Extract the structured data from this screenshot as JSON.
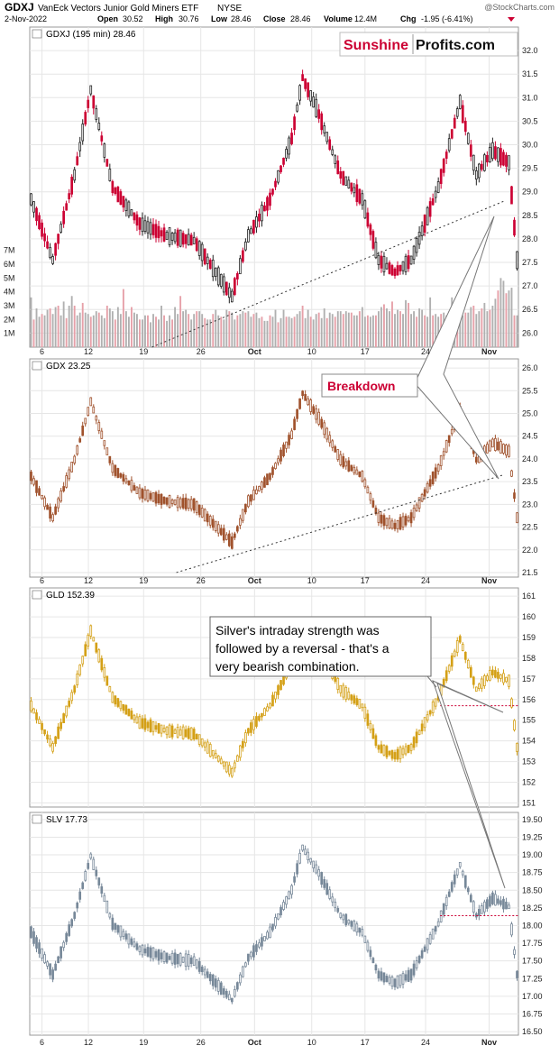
{
  "header": {
    "ticker": "GDXJ",
    "name": "VanEck Vectors Junior Gold Miners ETF",
    "exchange": "NYSE",
    "watermark": "@StockCharts.com",
    "date": "2-Nov-2022",
    "open_label": "Open",
    "open": "30.52",
    "high_label": "High",
    "high": "30.76",
    "low_label": "Low",
    "low": "28.46",
    "close_label": "Close",
    "close": "28.46",
    "volume_label": "Volume",
    "volume": "12.4M",
    "chg_label": "Chg",
    "chg": "-1.95 (-6.41%)"
  },
  "logo": {
    "part1": "Sunshine",
    "part2": "Profits.com"
  },
  "x_labels": [
    "6",
    "12",
    "19",
    "26",
    "Oct",
    "10",
    "17",
    "24",
    "Nov"
  ],
  "annotations": {
    "breakdown": "Breakdown",
    "silver_note_lines": [
      "Silver's intraday strength was",
      "followed by a reversal - that's a",
      "very bearish combination."
    ]
  },
  "colors": {
    "gdxj_up": "#222222",
    "gdxj_down": "#cc0033",
    "gdx": "#a0522d",
    "gld": "#d4a017",
    "slv": "#778899",
    "vol_up": "#b0b0b0",
    "vol_down": "#e6a0a8",
    "logo_red": "#cc0033",
    "grid": "#e6e6e6"
  },
  "chart_data": [
    {
      "type": "candlestick",
      "title": "GDXJ (195 min) 28.46",
      "ylim": [
        25.7,
        32.5
      ],
      "y_ticks": [
        "32.0",
        "31.5",
        "31.0",
        "30.5",
        "30.0",
        "29.5",
        "29.0",
        "28.5",
        "28.0",
        "27.5",
        "27.0",
        "26.5",
        "26.0"
      ],
      "volume_ticks": [
        "7M",
        "6M",
        "5M",
        "4M",
        "3M",
        "2M",
        "1M"
      ],
      "volume_max": 7.5,
      "volume": [
        3.6,
        2.6,
        2.0,
        2.4,
        2.8,
        3.0,
        2.2,
        2.1,
        2.4,
        2.6,
        2.3,
        2.0,
        2.7,
        2.6,
        2.8,
        3.2,
        2.4,
        2.1,
        2.9,
        2.3,
        3.0,
        2.6,
        2.3,
        2.5,
        3.3,
        2.5,
        2.1,
        2.6,
        3.0,
        3.6,
        3.7,
        3.8,
        3.0,
        2.8,
        2.3,
        2.1,
        2.5,
        2.7,
        3.2,
        2.8,
        2.5,
        2.3,
        2.4,
        2.6,
        2.2,
        2.9,
        2.3,
        2.6,
        2.6,
        2.4,
        2.5,
        2.7,
        2.3,
        2.0,
        2.1,
        2.4,
        3.0,
        2.6,
        2.8,
        3.4,
        2.6,
        2.3,
        2.0,
        3.8,
        2.9,
        2.6,
        2.4,
        3.2,
        4.2,
        3.1,
        2.6,
        2.4,
        2.2,
        2.6,
        2.9,
        2.5,
        2.5,
        2.2,
        2.4,
        2.2,
        2.0,
        2.2,
        2.0,
        1.9,
        2.3,
        3.0,
        2.3,
        2.0,
        1.8,
        1.9,
        2.4,
        2.6,
        2.2,
        2.1,
        2.0,
        2.6,
        3.0,
        2.8,
        2.3,
        2.1,
        1.9,
        2.1,
        2.3,
        1.8,
        2.0,
        2.3,
        2.9,
        2.6,
        2.4,
        2.8,
        3.7,
        2.4,
        2.6,
        2.2,
        2.7,
        3.1,
        2.4,
        2.2,
        2.0,
        2.7,
        2.4,
        2.3,
        2.6,
        2.9,
        2.6,
        2.4,
        2.4,
        2.4,
        2.1,
        2.1,
        2.0,
        2.1,
        2.0,
        1.9,
        2.4,
        3.0,
        2.7,
        1.8,
        2.3,
        2.7,
        2.2,
        1.8,
        2.0,
        2.6,
        2.7,
        2.7,
        2.6,
        2.4,
        2.5,
        2.0,
        2.0,
        2.0,
        2.3,
        2.2,
        2.4,
        2.6,
        2.6,
        3.0,
        2.5,
        2.3,
        2.6,
        2.4,
        2.2,
        2.3,
        2.4,
        2.0,
        2.5,
        2.4,
        2.1,
        2.3,
        2.2,
        2.1,
        1.9,
        2.0,
        1.9,
        2.4,
        2.3,
        1.9,
        2.2,
        1.9,
        2.7,
        2.1,
        1.8,
        2.2,
        2.1,
        1.7,
        2.7,
        2.0,
        2.2,
        2.3,
        2.2,
        2.6,
        2.1,
        2.0,
        2.2,
        2.7,
        2.4,
        1.9,
        2.6,
        2.4,
        3.0,
        2.2,
        2.1,
        2.4,
        2.7,
        2.3,
        2.2,
        2.1,
        2.0,
        2.4,
        2.4,
        2.4,
        2.5,
        3.0,
        2.1,
        1.9,
        2.8,
        2.3,
        2.1,
        2.3,
        2.5,
        2.2,
        2.4,
        2.3,
        2.2,
        2.4,
        2.6,
        2.8,
        2.6,
        3.0,
        2.4,
        2.7,
        2.6,
        2.5,
        2.5,
        2.3,
        2.5,
        2.6,
        2.3,
        2.6,
        2.3,
        2.2,
        2.6,
        3.7,
        2.9,
        2.7,
        2.2,
        2.5,
        2.3,
        2.8,
        2.2,
        2.0,
        2.3,
        2.4,
        2.3,
        2.4,
        2.6,
        2.2,
        2.9,
        2.6,
        3.1,
        2.8,
        2.8,
        2.6,
        2.6,
        3.0,
        3.3,
        2.2,
        2.4,
        2.7,
        2.7,
        2.5,
        2.6,
        2.4,
        2.4,
        2.6,
        3.4,
        2.4,
        3.2,
        2.3,
        2.4,
        2.4,
        2.6,
        2.3,
        2.2,
        2.6,
        2.8,
        2.9,
        2.7,
        2.2,
        2.3,
        2.8,
        2.2,
        2.7,
        3.6,
        2.5,
        2.3,
        2.4,
        2.4,
        2.8,
        2.2,
        2.7,
        2.4,
        2.6,
        2.5,
        2.1,
        2.3,
        2.4,
        2.6,
        2.0,
        3.6,
        2.6,
        2.3,
        2.6,
        2.4,
        2.7,
        2.2,
        2.3,
        2.3,
        2.6,
        2.5,
        2.7,
        2.5,
        2.4,
        2.9,
        2.3,
        3.0,
        2.6,
        2.4,
        2.5,
        2.6,
        2.7,
        2.8,
        3.0,
        3.2,
        2.5,
        2.6,
        2.4,
        2.7,
        2.9,
        3.0,
        3.2,
        3.5,
        3.7,
        4.1,
        4.6,
        5.0,
        5.2,
        4.8,
        4.0,
        3.9,
        4.0,
        4.1,
        4.2,
        4.3,
        4.5
      ],
      "trendline": [
        [
          0.25,
          25.7
        ],
        [
          0.97,
          28.8
        ]
      ]
    },
    {
      "type": "candlestick",
      "title": "GDX 23.25",
      "ylim": [
        21.4,
        26.2
      ],
      "y_ticks": [
        "26.0",
        "25.5",
        "25.0",
        "24.5",
        "24.0",
        "23.5",
        "23.0",
        "22.5",
        "22.0",
        "21.5"
      ],
      "trendline": [
        [
          0.3,
          21.5
        ],
        [
          0.97,
          23.65
        ]
      ]
    },
    {
      "type": "candlestick",
      "title": "GLD 152.39",
      "ylim": [
        150.8,
        161.4
      ],
      "y_ticks": [
        "161",
        "160",
        "159",
        "158",
        "157",
        "156",
        "155",
        "154",
        "153",
        "152",
        "151"
      ],
      "resistance": 155.7
    },
    {
      "type": "candlestick",
      "title": "SLV 17.73",
      "ylim": [
        16.45,
        19.6
      ],
      "y_ticks": [
        "19.50",
        "19.25",
        "19.00",
        "18.75",
        "18.50",
        "18.25",
        "18.00",
        "17.75",
        "17.50",
        "17.25",
        "17.00",
        "16.75",
        "16.50"
      ],
      "resistance": 18.14
    }
  ]
}
